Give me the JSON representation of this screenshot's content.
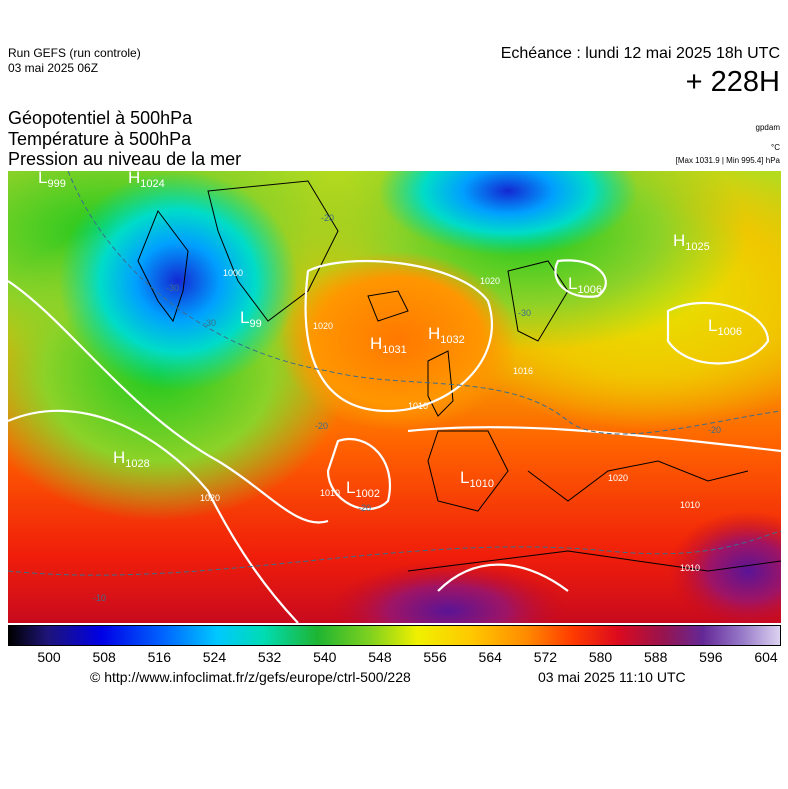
{
  "header": {
    "run": "Run GEFS (run controle)",
    "run_date": "03 mai 2025 06Z",
    "valid_time": "Echéance : lundi 12 mai 2025 18h UTC",
    "lead_time": "+ 228H"
  },
  "titles": [
    "Géopotentiel à 500hPa",
    "Température à 500hPa",
    "Pression au niveau de la mer"
  ],
  "units": [
    "gpdam",
    "°C",
    "[Max 1031.9 | Min 995.4] hPa"
  ],
  "map": {
    "centers": [
      {
        "type": "L",
        "value": 999
      },
      {
        "type": "H",
        "value": 1024
      },
      {
        "type": "L",
        "value": 99
      },
      {
        "type": "H",
        "value": 1031
      },
      {
        "type": "H",
        "value": 1032
      },
      {
        "type": "L",
        "value": 1006
      },
      {
        "type": "H",
        "value": 1025
      },
      {
        "type": "L",
        "value": 1006
      },
      {
        "type": "H",
        "value": 1028
      },
      {
        "type": "L",
        "value": 1002
      },
      {
        "type": "L",
        "value": 1010
      }
    ],
    "isobar_labels": [
      1000,
      1010,
      1020,
      1020,
      1010,
      1020,
      1010,
      1010,
      1016,
      1020
    ],
    "isotherm_labels": [
      -20,
      -30,
      -30,
      -20,
      -20,
      -10,
      -20,
      -30
    ]
  },
  "colorbar": {
    "labels": [
      500,
      508,
      516,
      524,
      532,
      540,
      548,
      556,
      564,
      572,
      580,
      588,
      596,
      604
    ]
  },
  "footer": {
    "source": "© http://www.infoclimat.fr/z/gefs/europe/ctrl-500/228",
    "generated": "03 mai 2025 11:10 UTC"
  }
}
